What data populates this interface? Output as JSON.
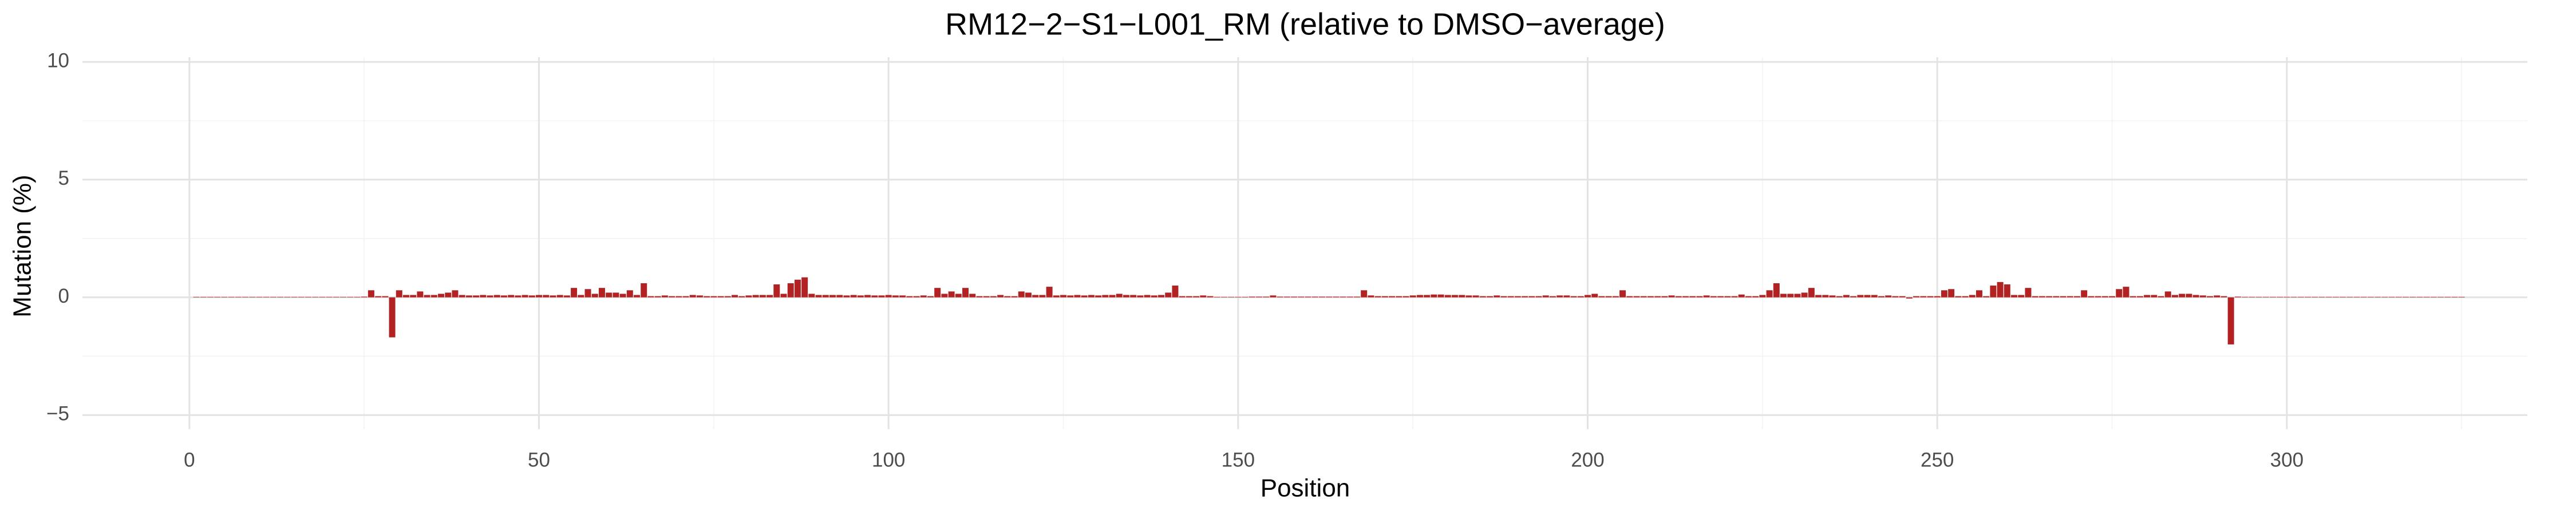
{
  "chart_data": {
    "type": "bar",
    "title": "RM12−2−S1−L001_RM (relative to DMSO−average)",
    "x_label": "Position",
    "y_label": "Mutation (%)",
    "color": "#b22222",
    "grid": true,
    "xlim": [
      -15.3,
      334.4
    ],
    "xticks": [
      0,
      50,
      100,
      150,
      200,
      250,
      300
    ],
    "ylim": [
      -5.6,
      10.2
    ],
    "yticks": [
      {
        "value": -5,
        "label": "−5"
      },
      0,
      5,
      10
    ],
    "x": [
      1,
      2,
      3,
      4,
      5,
      6,
      7,
      8,
      9,
      10,
      11,
      12,
      13,
      14,
      15,
      16,
      17,
      18,
      19,
      20,
      21,
      22,
      23,
      24,
      25,
      26,
      27,
      28,
      29,
      30,
      31,
      32,
      33,
      34,
      35,
      36,
      37,
      38,
      39,
      40,
      41,
      42,
      43,
      44,
      45,
      46,
      47,
      48,
      49,
      50,
      51,
      52,
      53,
      54,
      55,
      56,
      57,
      58,
      59,
      60,
      61,
      62,
      63,
      64,
      65,
      66,
      67,
      68,
      69,
      70,
      71,
      72,
      73,
      74,
      75,
      76,
      77,
      78,
      79,
      80,
      81,
      82,
      83,
      84,
      85,
      86,
      87,
      88,
      89,
      90,
      91,
      92,
      93,
      94,
      95,
      96,
      97,
      98,
      99,
      100,
      101,
      102,
      103,
      104,
      105,
      106,
      107,
      108,
      109,
      110,
      111,
      112,
      113,
      114,
      115,
      116,
      117,
      118,
      119,
      120,
      121,
      122,
      123,
      124,
      125,
      126,
      127,
      128,
      129,
      130,
      131,
      132,
      133,
      134,
      135,
      136,
      137,
      138,
      139,
      140,
      141,
      142,
      143,
      144,
      145,
      146,
      147,
      148,
      149,
      150,
      151,
      152,
      153,
      154,
      155,
      156,
      157,
      158,
      159,
      160,
      161,
      162,
      163,
      164,
      165,
      166,
      167,
      168,
      169,
      170,
      171,
      172,
      173,
      174,
      175,
      176,
      177,
      178,
      179,
      180,
      181,
      182,
      183,
      184,
      185,
      186,
      187,
      188,
      189,
      190,
      191,
      192,
      193,
      194,
      195,
      196,
      197,
      198,
      199,
      200,
      201,
      202,
      203,
      204,
      205,
      206,
      207,
      208,
      209,
      210,
      211,
      212,
      213,
      214,
      215,
      216,
      217,
      218,
      219,
      220,
      221,
      222,
      223,
      224,
      225,
      226,
      227,
      228,
      229,
      230,
      231,
      232,
      233,
      234,
      235,
      236,
      237,
      238,
      239,
      240,
      241,
      242,
      243,
      244,
      245,
      246,
      247,
      248,
      249,
      250,
      251,
      252,
      253,
      254,
      255,
      256,
      257,
      258,
      259,
      260,
      261,
      262,
      263,
      264,
      265,
      266,
      267,
      268,
      269,
      270,
      271,
      272,
      273,
      274,
      275,
      276,
      277,
      278,
      279,
      280,
      281,
      282,
      283,
      284,
      285,
      286,
      287,
      288,
      289,
      290,
      291,
      292,
      293,
      294,
      295,
      296,
      297,
      298,
      299,
      300,
      301,
      302,
      303,
      304,
      305,
      306,
      307,
      308,
      309,
      310,
      311,
      312,
      313,
      314,
      315,
      316,
      317,
      318,
      319,
      320,
      321,
      322,
      323,
      324,
      325
    ],
    "values": [
      0.02,
      0.02,
      0.02,
      0.02,
      0.02,
      0.02,
      0.02,
      0.02,
      0.02,
      0.02,
      0.02,
      0.02,
      0.02,
      0.02,
      0.02,
      0.02,
      0.02,
      0.02,
      0.02,
      0.02,
      0.02,
      0.02,
      0.02,
      0.02,
      0.03,
      0.3,
      0.05,
      0.05,
      -1.7,
      0.3,
      0.1,
      0.1,
      0.25,
      0.1,
      0.1,
      0.15,
      0.2,
      0.3,
      0.1,
      0.08,
      0.08,
      0.1,
      0.08,
      0.1,
      0.08,
      0.1,
      0.08,
      0.1,
      0.08,
      0.1,
      0.1,
      0.08,
      0.1,
      0.08,
      0.4,
      0.1,
      0.35,
      0.15,
      0.4,
      0.2,
      0.2,
      0.15,
      0.3,
      0.1,
      0.6,
      0.05,
      0.05,
      0.08,
      0.05,
      0.05,
      0.05,
      0.1,
      0.08,
      0.05,
      0.05,
      0.05,
      0.05,
      0.1,
      0.05,
      0.08,
      0.1,
      0.1,
      0.1,
      0.55,
      0.15,
      0.6,
      0.75,
      0.85,
      0.15,
      0.1,
      0.1,
      0.1,
      0.1,
      0.08,
      0.1,
      0.08,
      0.1,
      0.08,
      0.08,
      0.1,
      0.08,
      0.08,
      0.05,
      0.05,
      0.08,
      0.05,
      0.4,
      0.15,
      0.25,
      0.15,
      0.4,
      0.15,
      0.05,
      0.05,
      0.05,
      0.1,
      0.05,
      0.05,
      0.25,
      0.2,
      0.1,
      0.1,
      0.45,
      0.08,
      0.1,
      0.08,
      0.1,
      0.08,
      0.1,
      0.08,
      0.1,
      0.1,
      0.15,
      0.1,
      0.1,
      0.08,
      0.1,
      0.08,
      0.1,
      0.2,
      0.5,
      0.05,
      0.05,
      0.05,
      0.08,
      0.05,
      0.02,
      0.02,
      0.02,
      0.02,
      0.02,
      0.03,
      0.03,
      0.03,
      0.08,
      0.03,
      0.03,
      0.03,
      0.03,
      0.03,
      0.03,
      0.03,
      0.03,
      0.03,
      0.03,
      0.03,
      0.03,
      0.3,
      0.08,
      0.05,
      0.05,
      0.05,
      0.05,
      0.05,
      0.08,
      0.1,
      0.1,
      0.12,
      0.12,
      0.1,
      0.1,
      0.1,
      0.08,
      0.08,
      0.05,
      0.05,
      0.08,
      0.05,
      0.05,
      0.05,
      0.05,
      0.05,
      0.05,
      0.08,
      0.05,
      0.08,
      0.08,
      0.05,
      0.05,
      0.1,
      0.15,
      0.05,
      0.05,
      0.05,
      0.3,
      0.05,
      0.05,
      0.05,
      0.05,
      0.05,
      0.05,
      0.08,
      0.05,
      0.05,
      0.05,
      0.05,
      0.08,
      0.05,
      0.05,
      0.05,
      0.05,
      0.12,
      0.05,
      0.05,
      0.1,
      0.3,
      0.6,
      0.15,
      0.15,
      0.15,
      0.2,
      0.4,
      0.1,
      0.1,
      0.08,
      0.05,
      0.1,
      0.05,
      0.1,
      0.1,
      0.1,
      0.05,
      0.08,
      0.05,
      0.05,
      -0.05,
      0.05,
      0.05,
      0.05,
      0.05,
      0.3,
      0.35,
      0.05,
      0.05,
      0.1,
      0.3,
      0.05,
      0.5,
      0.65,
      0.55,
      0.1,
      0.1,
      0.4,
      0.05,
      0.05,
      0.05,
      0.05,
      0.05,
      0.05,
      0.05,
      0.3,
      0.05,
      0.05,
      0.05,
      0.05,
      0.35,
      0.45,
      0.05,
      0.05,
      0.1,
      0.1,
      0.05,
      0.25,
      0.1,
      0.15,
      0.15,
      0.1,
      0.08,
      0.05,
      0.08,
      0.05,
      -2.0,
      0.03,
      0.02,
      0.02,
      0.02,
      0.02,
      0.02,
      0.02,
      0.02,
      0.02,
      0.02,
      0.02,
      0.02,
      0.02,
      0.02,
      0.02,
      0.02,
      0.02,
      0.02,
      0.02,
      0.02,
      0.02,
      0.02,
      0.02,
      0.02,
      0.02,
      0.02,
      0.02,
      0.02,
      0.02,
      0.02,
      0.02,
      0.02,
      0.02
    ]
  }
}
